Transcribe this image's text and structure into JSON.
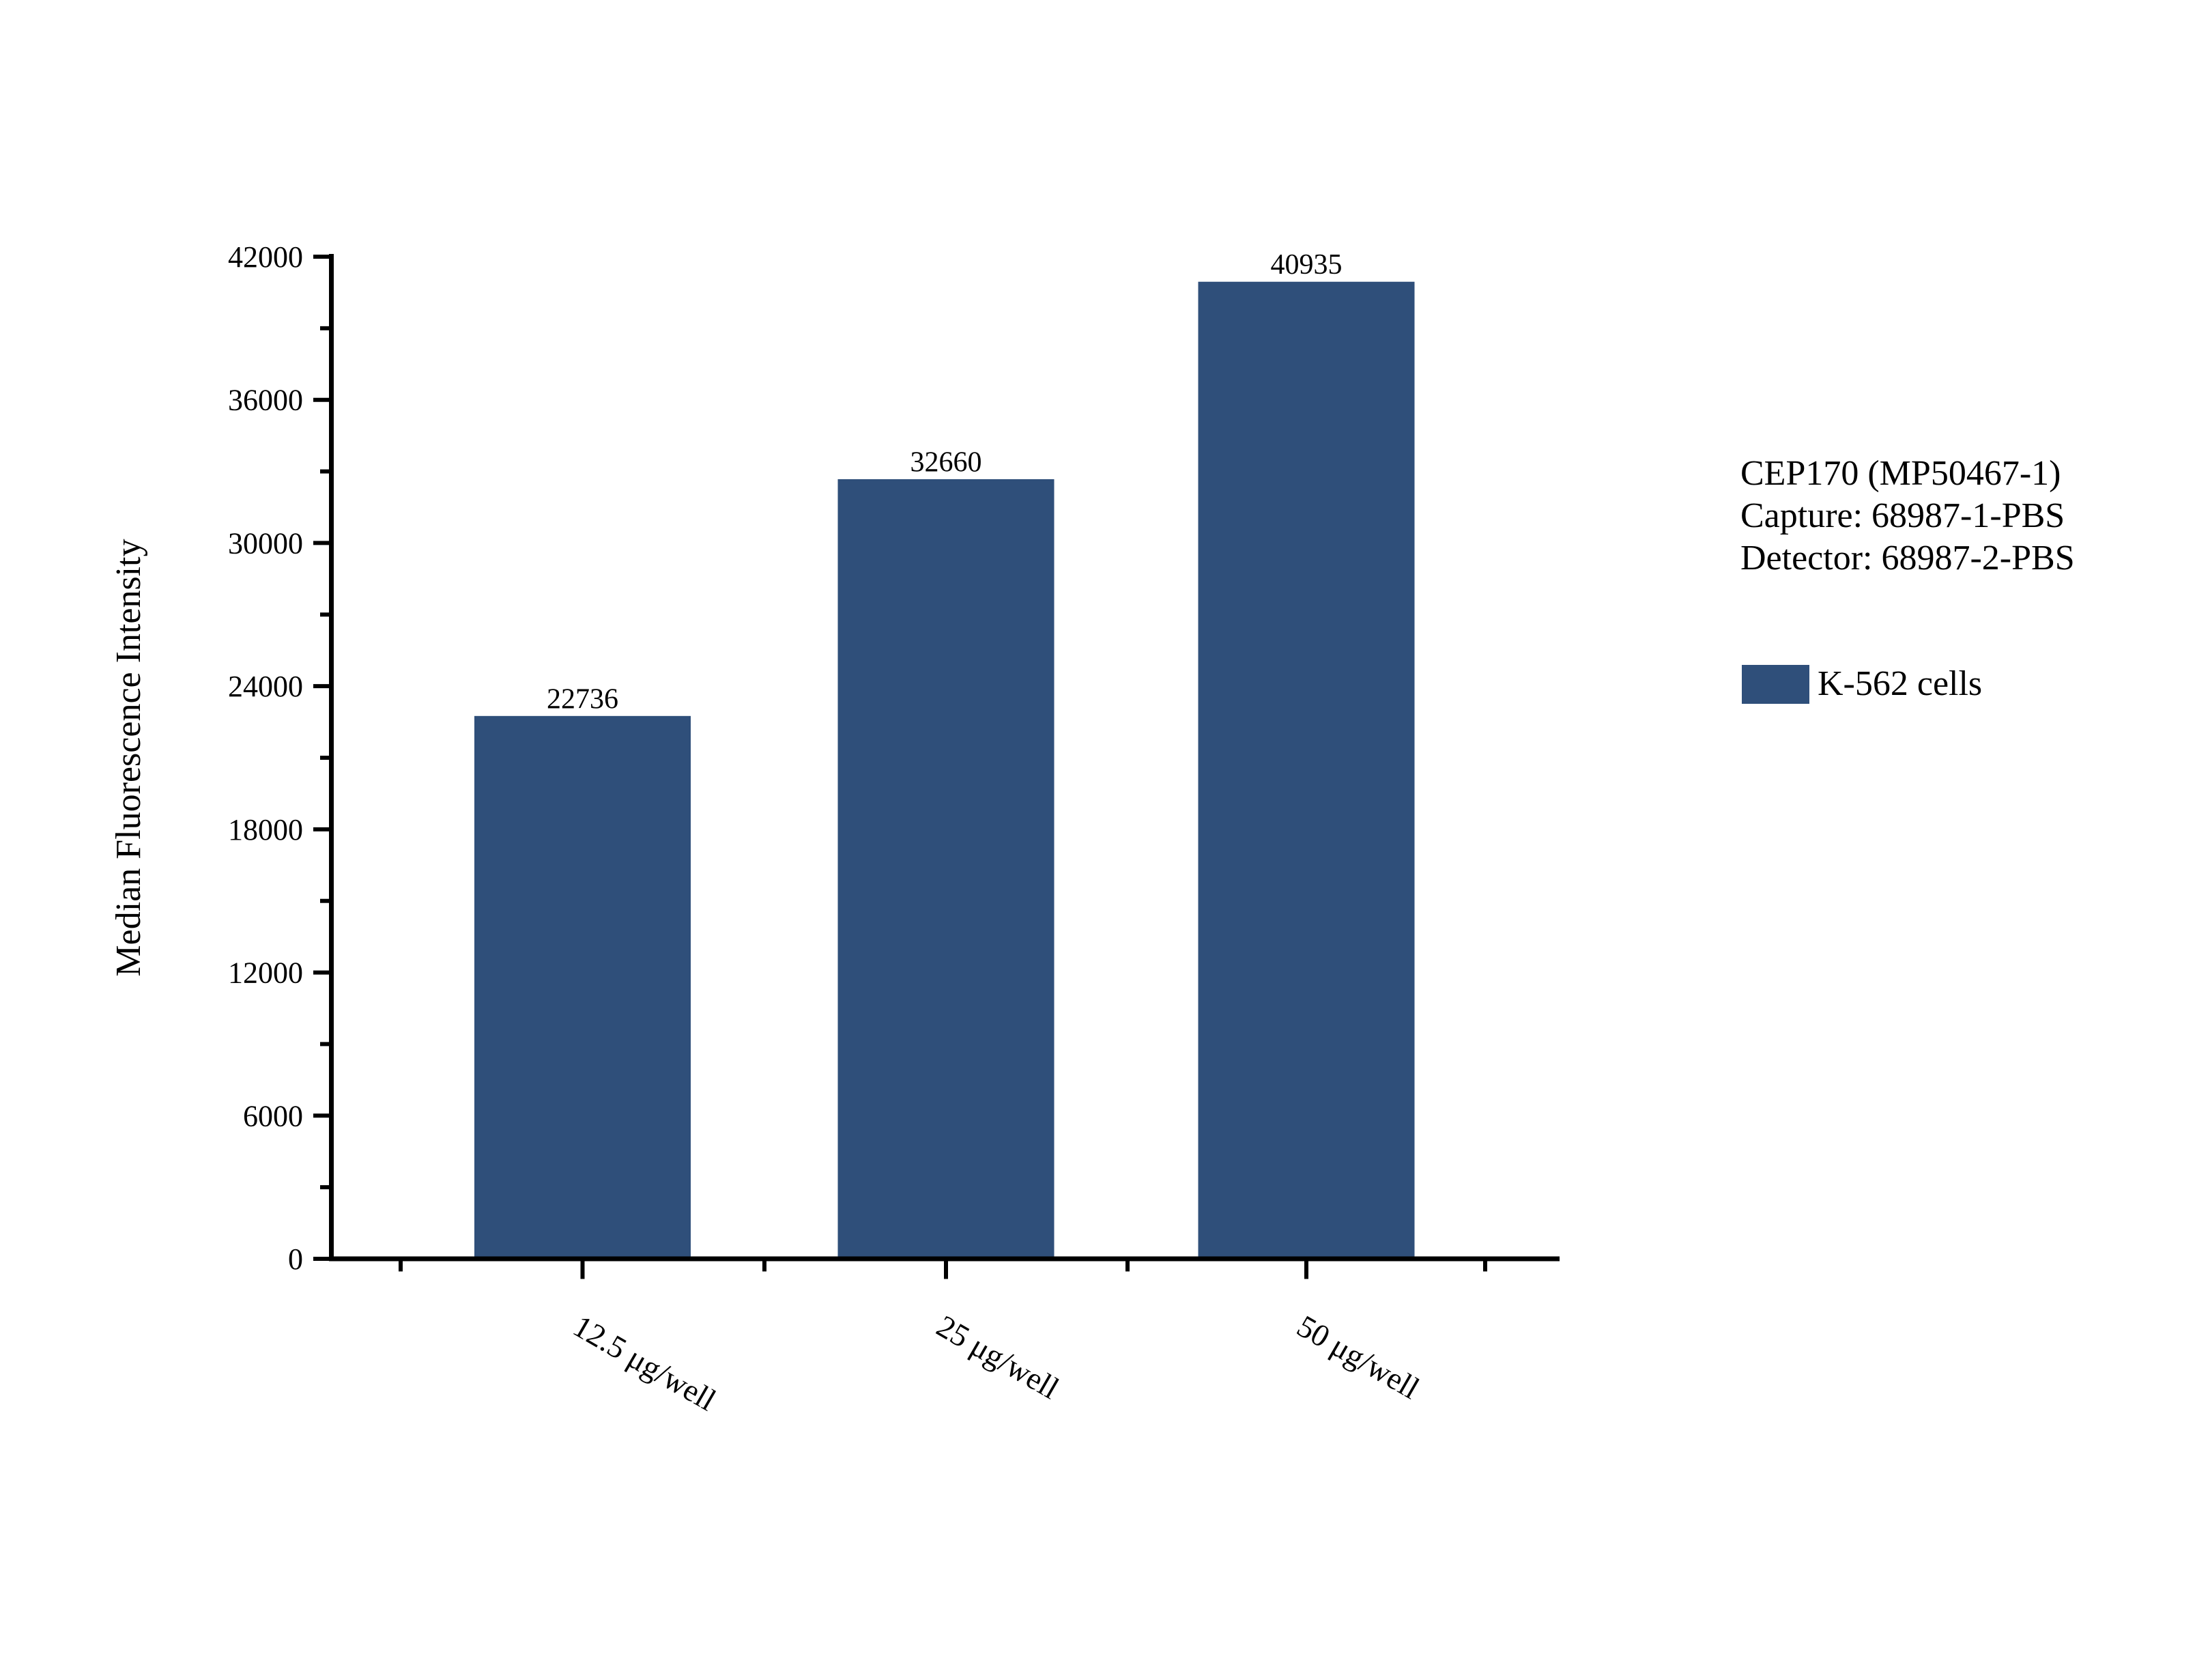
{
  "chart_data": {
    "type": "bar",
    "title": "",
    "categories": [
      "12.5 μg/well",
      "25 μg/well",
      "50 μg/well"
    ],
    "series": [
      {
        "name": "K-562 cells",
        "values": [
          22736,
          32660,
          40935
        ]
      }
    ],
    "bar_value_labels": [
      "22736",
      "32660",
      "40935"
    ],
    "xlabel": "",
    "ylabel": "Median Fluorescence Intensity",
    "ylim": [
      0,
      42000
    ],
    "ytick_step": 6000,
    "yminor_step": 3000,
    "ytick_labels": [
      "0",
      "6000",
      "12000",
      "18000",
      "24000",
      "30000",
      "36000",
      "42000"
    ],
    "grid": false,
    "legend_position": "right",
    "bar_color": "#2F4F7A",
    "axis_color": "#000000",
    "text_color": "#000000"
  },
  "annotation": {
    "lines": [
      "CEP170 (MP50467-1)",
      "Capture: 68987-1-PBS",
      "Detector: 68987-2-PBS"
    ]
  },
  "legend": {
    "items": [
      {
        "label": "K-562 cells",
        "color": "#2F4F7A"
      }
    ]
  }
}
